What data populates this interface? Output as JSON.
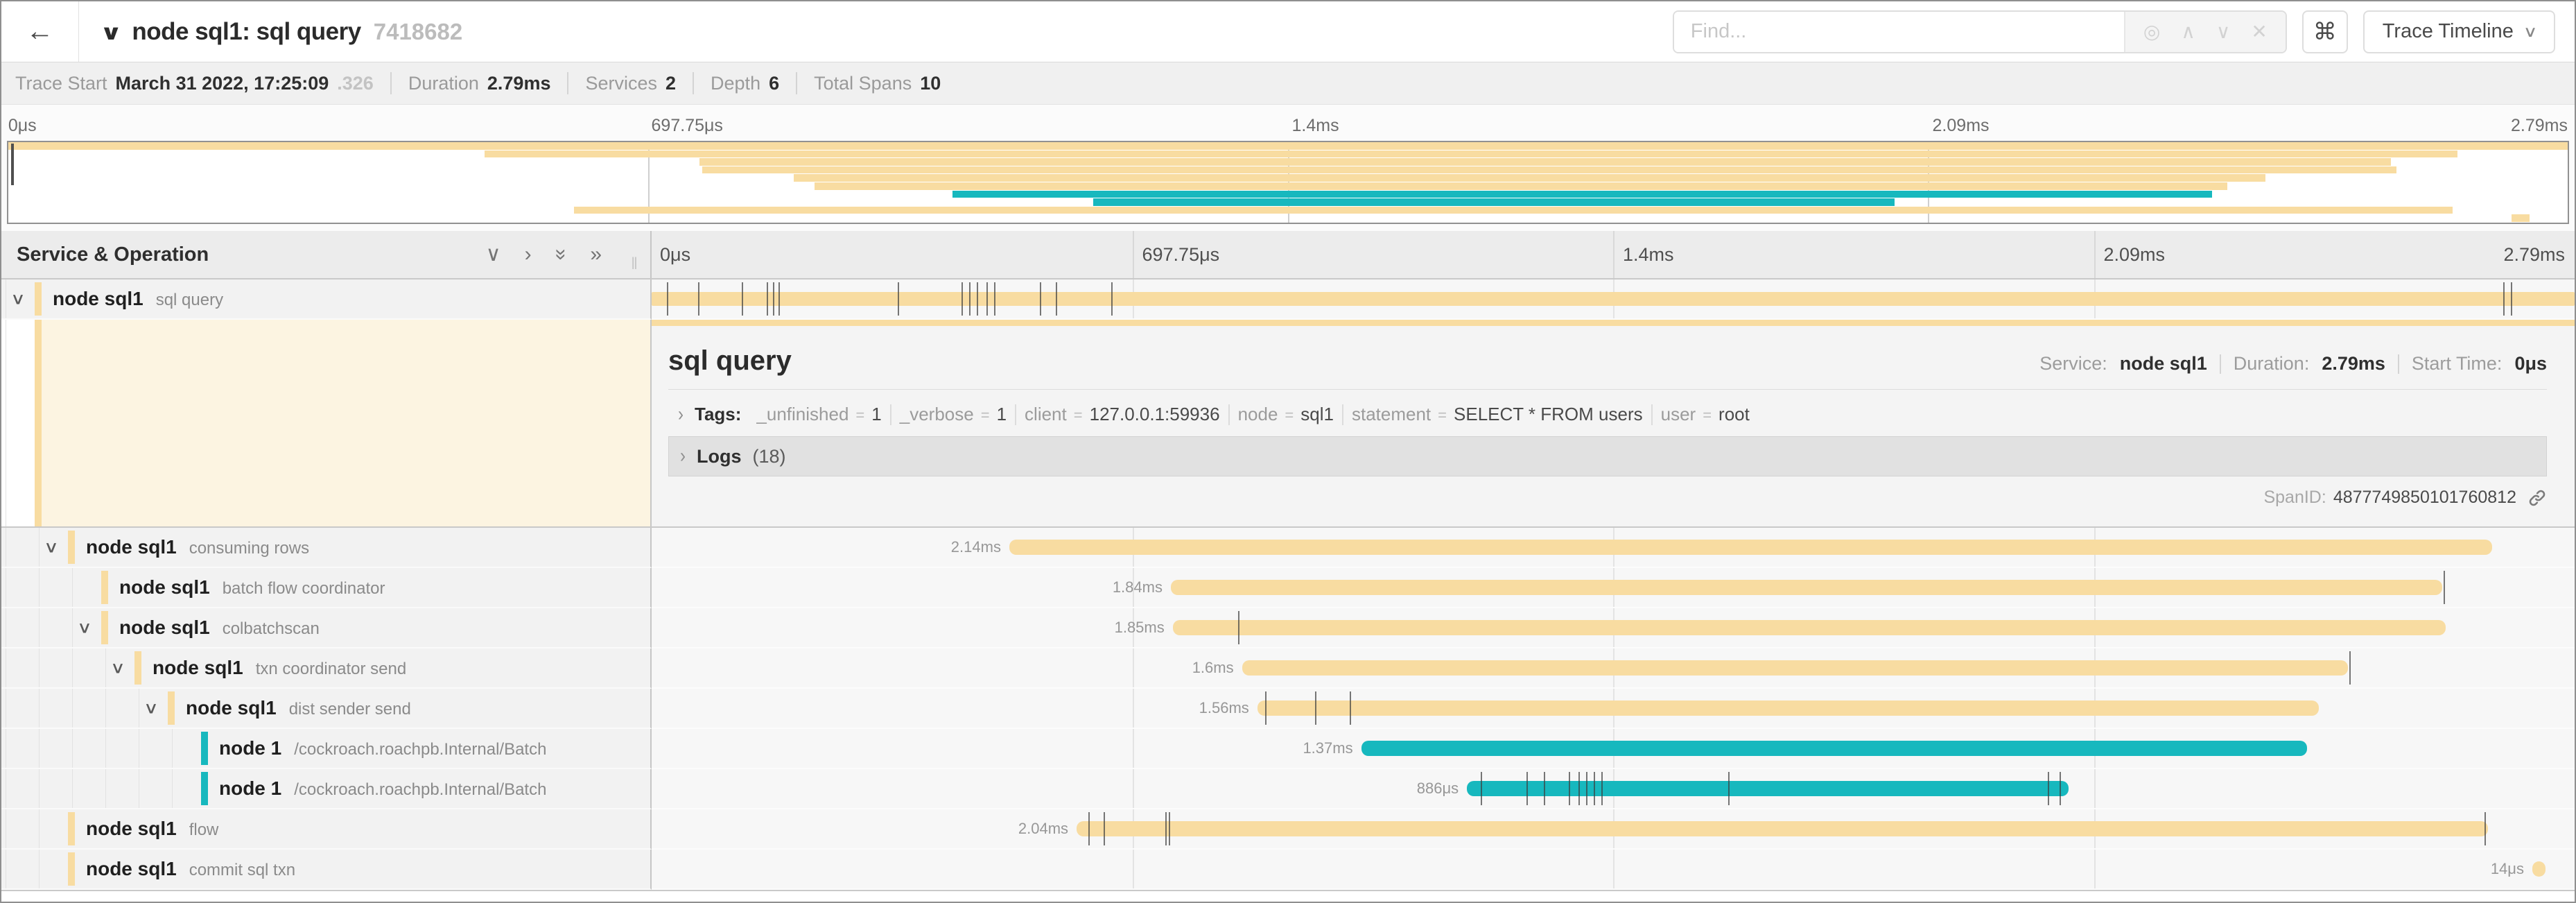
{
  "header": {
    "back_icon": "←",
    "collapse_icon": "∨",
    "title": "node sql1: sql query",
    "trace_id": "7418682",
    "find_placeholder": "Find...",
    "locate_icon": "◎",
    "prev_icon": "∧",
    "next_icon": "∨",
    "clear_icon": "✕",
    "shortcut_icon": "⌘",
    "view_selector": "Trace Timeline",
    "view_chevron": "∨"
  },
  "trace_info": {
    "items": [
      {
        "label": "Trace Start",
        "value": "March 31 2022, 17:25:09",
        "suffix": ".326"
      },
      {
        "label": "Duration",
        "value": "2.79ms"
      },
      {
        "label": "Services",
        "value": "2"
      },
      {
        "label": "Depth",
        "value": "6"
      },
      {
        "label": "Total Spans",
        "value": "10"
      }
    ]
  },
  "colors": {
    "tan": "#f8dca1",
    "teal": "#17b8be"
  },
  "minimap": {
    "labels": [
      "0μs",
      "697.75μs",
      "1.4ms",
      "2.09ms",
      "2.79ms"
    ]
  },
  "timeline": {
    "left_header": "Service & Operation",
    "header_icons": [
      "∨",
      "›",
      "»",
      "»"
    ],
    "ruler_labels": [
      "0μs",
      "697.75μs",
      "1.4ms",
      "2.09ms",
      "2.79ms"
    ]
  },
  "spans": [
    {
      "service": "node sql1",
      "operation": "sql query",
      "depth": 0,
      "color": "tan",
      "start": 0,
      "width": 100,
      "duration_label": "",
      "chevron": true,
      "ticks": [
        0.8,
        2.4,
        4.7,
        6.0,
        6.3,
        6.6,
        12.8,
        16.1,
        16.5,
        16.9,
        17.4,
        17.8,
        20.2,
        21.0,
        23.9,
        96.3,
        96.7
      ]
    },
    {
      "service": "node sql1",
      "operation": "consuming rows",
      "depth": 1,
      "color": "tan",
      "start": 18.6,
      "width": 77.1,
      "duration_label": "2.14ms",
      "chevron": true,
      "ticks": []
    },
    {
      "service": "node sql1",
      "operation": "batch flow coordinator",
      "depth": 2,
      "color": "tan",
      "start": 27.0,
      "width": 66.1,
      "duration_label": "1.84ms",
      "chevron": false,
      "ticks": [
        93.2
      ]
    },
    {
      "service": "node sql1",
      "operation": "colbatchscan",
      "depth": 2,
      "color": "tan",
      "start": 27.1,
      "width": 66.2,
      "duration_label": "1.85ms",
      "chevron": true,
      "ticks": [
        30.5
      ]
    },
    {
      "service": "node sql1",
      "operation": "txn coordinator send",
      "depth": 3,
      "color": "tan",
      "start": 30.7,
      "width": 57.5,
      "duration_label": "1.6ms",
      "chevron": true,
      "ticks": [
        88.3
      ]
    },
    {
      "service": "node sql1",
      "operation": "dist sender send",
      "depth": 4,
      "color": "tan",
      "start": 31.5,
      "width": 55.2,
      "duration_label": "1.56ms",
      "chevron": true,
      "ticks": [
        31.9,
        34.5,
        36.3
      ]
    },
    {
      "service": "node 1",
      "operation": "/cockroach.roachpb.Internal/Batch",
      "depth": 5,
      "color": "teal",
      "start": 36.9,
      "width": 49.2,
      "duration_label": "1.37ms",
      "chevron": false,
      "ticks": []
    },
    {
      "service": "node 1",
      "operation": "/cockroach.roachpb.Internal/Batch",
      "depth": 5,
      "color": "teal",
      "start": 42.4,
      "width": 31.3,
      "duration_label": "886μs",
      "chevron": false,
      "ticks": [
        43.1,
        45.5,
        46.4,
        47.7,
        48.2,
        48.6,
        49.0,
        49.4,
        56.0,
        72.6,
        73.2
      ]
    },
    {
      "service": "node sql1",
      "operation": "flow",
      "depth": 1,
      "color": "tan",
      "start": 22.1,
      "width": 73.4,
      "duration_label": "2.04ms",
      "chevron": false,
      "ticks": [
        22.7,
        23.5,
        26.7,
        26.9,
        95.3
      ]
    },
    {
      "service": "node sql1",
      "operation": "commit sql txn",
      "depth": 1,
      "color": "tan",
      "start": 97.8,
      "width": 0.7,
      "duration_label": "14μs",
      "chevron": false,
      "ticks": []
    }
  ],
  "detail": {
    "title": "sql query",
    "service_label": "Service:",
    "service": "node sql1",
    "duration_label": "Duration:",
    "duration": "2.79ms",
    "start_label": "Start Time:",
    "start": "0μs",
    "tags_chevron": "›",
    "tags_label": "Tags:",
    "tags": [
      {
        "key": "_unfinished",
        "value": "1"
      },
      {
        "key": "_verbose",
        "value": "1"
      },
      {
        "key": "client",
        "value": "127.0.0.1:59936"
      },
      {
        "key": "node",
        "value": "sql1"
      },
      {
        "key": "statement",
        "value": "SELECT * FROM users"
      },
      {
        "key": "user",
        "value": "root"
      }
    ],
    "logs_chevron": "›",
    "logs_label": "Logs",
    "logs_count": "(18)",
    "spanid_label": "SpanID:",
    "span_id": "4877749850101760812"
  }
}
